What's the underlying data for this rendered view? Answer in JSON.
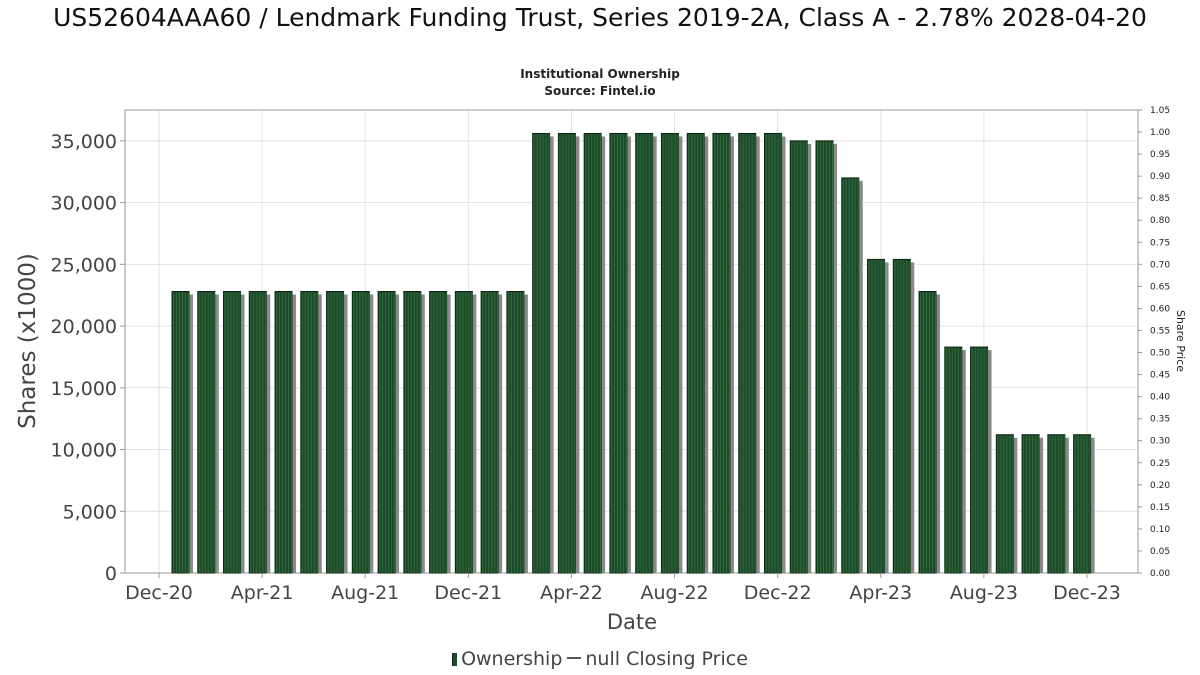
{
  "title": "US52604AAA60 / Lendmark Funding Trust, Series 2019-2A, Class A - 2.78% 2028-04-20",
  "subtitle": "Institutional Ownership",
  "source": "Source: Fintel.io",
  "legend": {
    "ownership": "Ownership",
    "price": "null Closing Price"
  },
  "colors": {
    "bar": "#1f4a2a",
    "bar_stripe": "#2e6a3b",
    "bar_edge": "#0b2612",
    "shadow": "#8a8a8a",
    "grid": "#e2e2e2"
  },
  "chart_data": {
    "type": "bar",
    "xlabel": "Date",
    "ylabel": "Shares (x1000)",
    "y2label": "Share Price",
    "ylim": [
      0,
      37500
    ],
    "y2lim": [
      0,
      1.05
    ],
    "yticks": [
      0,
      5000,
      10000,
      15000,
      20000,
      25000,
      30000,
      35000
    ],
    "ytick_labels": [
      "0",
      "5,000",
      "10,000",
      "15,000",
      "20,000",
      "25,000",
      "30,000",
      "35,000"
    ],
    "y2ticks": [
      "0.00",
      "0.05",
      "0.10",
      "0.15",
      "0.20",
      "0.25",
      "0.30",
      "0.35",
      "0.40",
      "0.45",
      "0.50",
      "0.55",
      "0.60",
      "0.65",
      "0.70",
      "0.75",
      "0.80",
      "0.85",
      "0.90",
      "0.95",
      "1.00",
      "1.05"
    ],
    "xticks": [
      "Dec-20",
      "Apr-21",
      "Aug-21",
      "Dec-21",
      "Apr-22",
      "Aug-22",
      "Dec-22",
      "Apr-23",
      "Aug-23",
      "Dec-23"
    ],
    "grid": true,
    "legend_position": "bottom",
    "series": [
      {
        "name": "Ownership",
        "values": [
          22800,
          22800,
          22800,
          22800,
          22800,
          22800,
          22800,
          22800,
          22800,
          22800,
          22800,
          22800,
          22800,
          22800,
          35600,
          35600,
          35600,
          35600,
          35600,
          35600,
          35600,
          35600,
          35600,
          35600,
          35000,
          35000,
          32000,
          25400,
          25400,
          22800,
          18300,
          18300,
          11200,
          11200,
          11200,
          11200
        ]
      },
      {
        "name": "null Closing Price",
        "values": []
      }
    ]
  }
}
